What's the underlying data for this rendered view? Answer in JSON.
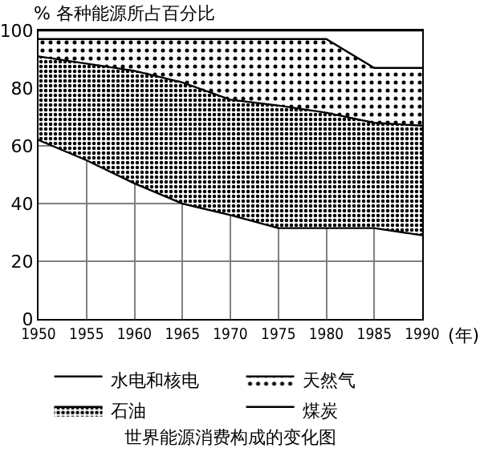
{
  "chart_data": {
    "type": "area",
    "stacked": true,
    "ylabel": "% 各种能源所占百分比",
    "xlabel": "(年)",
    "title": "世界能源消费构成的变化图",
    "x": [
      1950,
      1955,
      1960,
      1965,
      1970,
      1975,
      1980,
      1985,
      1990
    ],
    "series": [
      {
        "name": "煤炭",
        "color": "#000000",
        "values": [
          62,
          55,
          47,
          40,
          36,
          31.5,
          31.5,
          31.5,
          29
        ]
      },
      {
        "name": "石油",
        "color": "#000000",
        "values": [
          29,
          33.5,
          39,
          42,
          40,
          42.5,
          40,
          36.5,
          38
        ]
      },
      {
        "name": "天然气",
        "color": "#000000",
        "values": [
          6,
          8.5,
          11,
          15,
          21,
          23,
          25.5,
          19,
          20
        ]
      },
      {
        "name": "水电和核电",
        "color": "#000000",
        "values": [
          3,
          3,
          3,
          3,
          3,
          3,
          3,
          13,
          13
        ]
      }
    ],
    "xlim": [
      1950,
      1990
    ],
    "xticks": [
      1950,
      1955,
      1960,
      1965,
      1970,
      1975,
      1980,
      1985,
      1990
    ],
    "ylim": [
      0,
      100
    ],
    "yticks": [
      0,
      20,
      40,
      60,
      80,
      100
    ],
    "grid": true,
    "legend": "bottom"
  }
}
